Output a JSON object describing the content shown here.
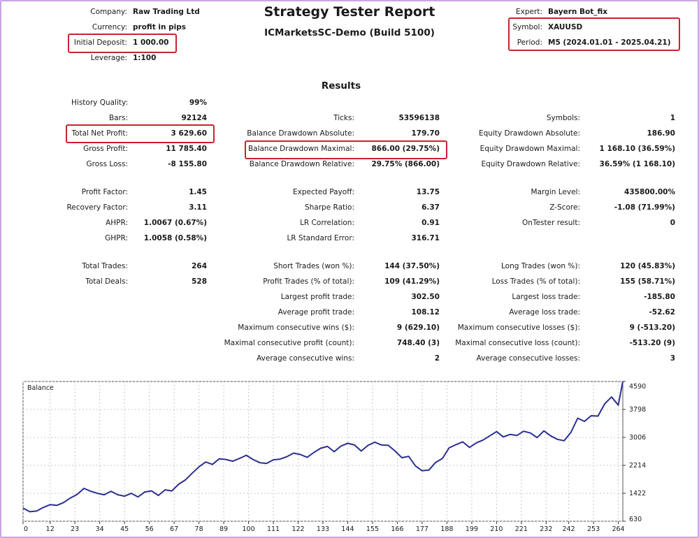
{
  "report": {
    "title": "Strategy Tester Report",
    "subtitle": "ICMarketsSC-Demo (Build 5100)",
    "results_heading": "Results"
  },
  "header_left": [
    {
      "label": "Company:",
      "value": "Raw Trading Ltd"
    },
    {
      "label": "Currency:",
      "value": "profit in pips"
    },
    {
      "label": "Initial Deposit:",
      "value": "1 000.00"
    },
    {
      "label": "Leverage:",
      "value": "1:100"
    }
  ],
  "header_right": [
    {
      "label": "Expert:",
      "value": "Bayern Bot_fix"
    },
    {
      "label": "Symbol:",
      "value": "XAUUSD"
    },
    {
      "label": "Period:",
      "value": "M5 (2024.01.01 - 2025.04.21)"
    }
  ],
  "col1": [
    {
      "label": "History Quality:",
      "value": "99%"
    },
    {
      "label": "Bars:",
      "value": "92124"
    },
    {
      "label": "Total Net Profit:",
      "value": "3 629.60"
    },
    {
      "label": "Gross Profit:",
      "value": "11 785.40"
    },
    {
      "label": "Gross Loss:",
      "value": "-8 155.80"
    },
    {
      "label": "Profit Factor:",
      "value": "1.45"
    },
    {
      "label": "Recovery Factor:",
      "value": "3.11"
    },
    {
      "label": "AHPR:",
      "value": "1.0067 (0.67%)"
    },
    {
      "label": "GHPR:",
      "value": "1.0058 (0.58%)"
    },
    {
      "label": "Total Trades:",
      "value": "264"
    },
    {
      "label": "Total Deals:",
      "value": "528"
    }
  ],
  "col2": [
    {
      "label": "Ticks:",
      "value": "53596138"
    },
    {
      "label": "Balance Drawdown Absolute:",
      "value": "179.70"
    },
    {
      "label": "Balance Drawdown Maximal:",
      "value": "866.00 (29.75%)"
    },
    {
      "label": "Balance Drawdown Relative:",
      "value": "29.75% (866.00)"
    },
    {
      "label": "Expected Payoff:",
      "value": "13.75"
    },
    {
      "label": "Sharpe Ratio:",
      "value": "6.37"
    },
    {
      "label": "LR Correlation:",
      "value": "0.91"
    },
    {
      "label": "LR Standard Error:",
      "value": "316.71"
    },
    {
      "label": "Short Trades (won %):",
      "value": "144 (37.50%)"
    },
    {
      "label": "Profit Trades (% of total):",
      "value": "109 (41.29%)"
    },
    {
      "label": "Largest profit trade:",
      "value": "302.50"
    },
    {
      "label": "Average profit trade:",
      "value": "108.12"
    },
    {
      "label": "Maximum consecutive wins ($):",
      "value": "9 (629.10)"
    },
    {
      "label": "Maximal consecutive profit (count):",
      "value": "748.40 (3)"
    },
    {
      "label": "Average consecutive wins:",
      "value": "2"
    }
  ],
  "col3": [
    {
      "label": "Symbols:",
      "value": "1"
    },
    {
      "label": "Equity Drawdown Absolute:",
      "value": "186.90"
    },
    {
      "label": "Equity Drawdown Maximal:",
      "value": "1 168.10 (36.59%)"
    },
    {
      "label": "Equity Drawdown Relative:",
      "value": "36.59% (1 168.10)"
    },
    {
      "label": "Margin Level:",
      "value": "435800.00%"
    },
    {
      "label": "Z-Score:",
      "value": "-1.08 (71.99%)"
    },
    {
      "label": "OnTester result:",
      "value": "0"
    },
    {
      "label": "Long Trades (won %):",
      "value": "120 (45.83%)"
    },
    {
      "label": "Loss Trades (% of total):",
      "value": "155 (58.71%)"
    },
    {
      "label": "Largest loss trade:",
      "value": "-185.80"
    },
    {
      "label": "Average loss trade:",
      "value": "-52.62"
    },
    {
      "label": "Maximum consecutive losses ($):",
      "value": "9 (-513.20)"
    },
    {
      "label": "Maximal consecutive loss (count):",
      "value": "-513.20 (9)"
    },
    {
      "label": "Average consecutive losses:",
      "value": "3"
    }
  ],
  "colors": {
    "line": "#2b2f8f",
    "highlight": "#c8242d",
    "grid": "#c8c8c8"
  },
  "chart_data": {
    "type": "line",
    "title": "Balance",
    "xlim": [
      0,
      266
    ],
    "ylim": [
      630,
      4590
    ],
    "x_ticks": [
      "0",
      "12",
      "23",
      "34",
      "45",
      "56",
      "67",
      "78",
      "89",
      "100",
      "111",
      "122",
      "133",
      "144",
      "155",
      "166",
      "177",
      "188",
      "199",
      "210",
      "221",
      "232",
      "242",
      "253",
      "264"
    ],
    "y_ticks": [
      "4590",
      "3798",
      "3006",
      "2214",
      "1422",
      "630"
    ],
    "series": [
      {
        "x": [
          0,
          3,
          6,
          9,
          12,
          15,
          18,
          21,
          24,
          27,
          30,
          33,
          36,
          39,
          42,
          45,
          48,
          51,
          54,
          57,
          60,
          63,
          66,
          69,
          72,
          75,
          78,
          81,
          84,
          87,
          90,
          93,
          96,
          99,
          102,
          105,
          108,
          111,
          114,
          117,
          120,
          123,
          126,
          129,
          132,
          135,
          138,
          141,
          144,
          147,
          150,
          153,
          156,
          159,
          162,
          165,
          168,
          171,
          174,
          177,
          180,
          183,
          186,
          189,
          192,
          195,
          198,
          201,
          204,
          207,
          210,
          213,
          216,
          219,
          222,
          225,
          228,
          231,
          234,
          237,
          240,
          243,
          246,
          249,
          252,
          255,
          258,
          261,
          264,
          266
        ],
        "values": [
          1000,
          900,
          920,
          1020,
          1100,
          1080,
          1160,
          1290,
          1390,
          1560,
          1480,
          1420,
          1380,
          1480,
          1380,
          1340,
          1420,
          1320,
          1460,
          1490,
          1360,
          1520,
          1490,
          1680,
          1800,
          1990,
          2170,
          2310,
          2240,
          2400,
          2380,
          2330,
          2410,
          2500,
          2380,
          2290,
          2270,
          2370,
          2390,
          2460,
          2560,
          2520,
          2440,
          2580,
          2700,
          2750,
          2600,
          2760,
          2840,
          2790,
          2620,
          2780,
          2870,
          2790,
          2780,
          2620,
          2430,
          2470,
          2200,
          2060,
          2080,
          2300,
          2410,
          2710,
          2800,
          2880,
          2720,
          2850,
          2930,
          3050,
          3170,
          3020,
          3090,
          3060,
          3180,
          3130,
          3000,
          3190,
          3050,
          2950,
          2910,
          3150,
          3550,
          3460,
          3620,
          3610,
          3960,
          4150,
          3920,
          4590
        ]
      }
    ]
  }
}
